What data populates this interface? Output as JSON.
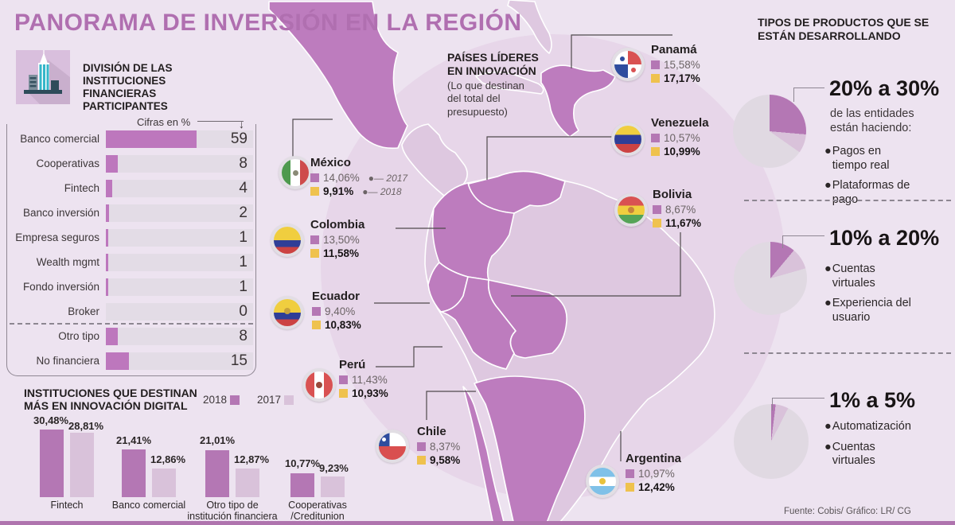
{
  "page": {
    "title": "PANORAMA DE INVERSIÓN EN LA REGIÓN",
    "footer_source": "Fuente: Cobis/ Gráfico: LR/ CG"
  },
  "colors": {
    "accent_purple": "#B477B4",
    "light_purple": "#D9C2DA",
    "yellow": "#EFC24E",
    "title_purple": "#B06FB0",
    "map_dark_country": "#BD7CBE",
    "map_light_country": "#DEC8E0",
    "bar_track": "#E3DCE6",
    "pie_rest": "#E0D9E2",
    "footer_bar": "#AF74AE"
  },
  "division_chart": {
    "heading": "DIVISIÓN DE LAS INSTITUCIONES FINANCIERAS PARTICIPANTES",
    "unit_label": "Cifras en %",
    "rows": [
      {
        "label": "Banco comercial",
        "value": 59
      },
      {
        "label": "Cooperativas",
        "value": 8
      },
      {
        "label": "Fintech",
        "value": 4
      },
      {
        "label": "Banco inversión",
        "value": 2
      },
      {
        "label": "Empresa seguros",
        "value": 1
      },
      {
        "label": "Wealth mgmt",
        "value": 1
      },
      {
        "label": "Fondo inversión",
        "value": 1
      },
      {
        "label": "Broker",
        "value": 0
      },
      {
        "label": "Otro tipo",
        "value": 8
      },
      {
        "label": "No financiera",
        "value": 15
      }
    ]
  },
  "innovation_map": {
    "heading": "PAÍSES LÍDERES EN INNOVACIÓN",
    "subheading": "(Lo que destinan del total del presupuesto)",
    "year_note_2017": "2017",
    "year_note_2018": "2018",
    "countries": [
      {
        "name": "México",
        "v2017": "14,06%",
        "v2018": "9,91%"
      },
      {
        "name": "Panamá",
        "v2017": "15,58%",
        "v2018": "17,17%"
      },
      {
        "name": "Venezuela",
        "v2017": "10,57%",
        "v2018": "10,99%"
      },
      {
        "name": "Colombia",
        "v2017": "13,50%",
        "v2018": "11,58%"
      },
      {
        "name": "Bolivia",
        "v2017": "8,67%",
        "v2018": "11,67%"
      },
      {
        "name": "Ecuador",
        "v2017": "9,40%",
        "v2018": "10,83%"
      },
      {
        "name": "Perú",
        "v2017": "11,43%",
        "v2018": "10,93%"
      },
      {
        "name": "Chile",
        "v2017": "8,37%",
        "v2018": "9,58%"
      },
      {
        "name": "Argentina",
        "v2017": "10,97%",
        "v2018": "12,42%"
      }
    ]
  },
  "products": {
    "heading": "TIPOS DE PRODUCTOS QUE SE ESTÁN DESARROLLANDO",
    "groups": [
      {
        "range": "20% a 30%",
        "note": "de las entidades están haciendo:",
        "items": [
          "Pagos en tiempo real",
          "Plataformas de pago"
        ],
        "pie": {
          "main_deg": 95,
          "secondary_deg": 30
        }
      },
      {
        "range": "10% a 20%",
        "note": "",
        "items": [
          "Cuentas virtuales",
          "Experiencia del usuario"
        ],
        "pie": {
          "main_deg": 40,
          "secondary_deg": 34
        }
      },
      {
        "range": "1% a 5%",
        "note": "",
        "items": [
          "Automatización",
          "Cuentas virtuales"
        ],
        "pie": {
          "main_deg": 7,
          "secondary_deg": 20
        }
      }
    ]
  },
  "digital_chart": {
    "heading": "INSTITUCIONES QUE DESTINAN MÁS EN INNOVACIÓN DIGITAL",
    "legend": [
      {
        "label": "2018"
      },
      {
        "label": "2017"
      }
    ],
    "groups": [
      {
        "label": "Fintech",
        "v2018": 30.48,
        "d2018": "30,48%",
        "v2017": 28.81,
        "d2017": "28,81%"
      },
      {
        "label": "Banco comercial",
        "v2018": 21.41,
        "d2018": "21,41%",
        "v2017": 12.86,
        "d2017": "12,86%"
      },
      {
        "label": "Otro tipo de institución financiera",
        "v2018": 21.01,
        "d2018": "21,01%",
        "v2017": 12.87,
        "d2017": "12,87%"
      },
      {
        "label": "Cooperativas /Creditunion",
        "v2018": 10.77,
        "d2018": "10,77%",
        "v2017": 9.23,
        "d2017": "9,23%"
      }
    ]
  },
  "chart_data": [
    {
      "type": "bar",
      "title": "DIVISIÓN DE LAS INSTITUCIONES FINANCIERAS PARTICIPANTES",
      "xlabel": "",
      "ylabel": "Cifras en %",
      "categories": [
        "Banco comercial",
        "Cooperativas",
        "Fintech",
        "Banco inversión",
        "Empresa seguros",
        "Wealth mgmt",
        "Fondo inversión",
        "Broker",
        "Otro tipo",
        "No financiera"
      ],
      "values": [
        59,
        8,
        4,
        2,
        1,
        1,
        1,
        0,
        8,
        15
      ],
      "xlim": [
        0,
        100
      ],
      "orientation": "horizontal"
    },
    {
      "type": "table",
      "title": "PAÍSES LÍDERES EN INNOVACIÓN (Lo que destinan del total del presupuesto)",
      "categories": [
        "México",
        "Panamá",
        "Venezuela",
        "Colombia",
        "Bolivia",
        "Ecuador",
        "Perú",
        "Chile",
        "Argentina"
      ],
      "series": [
        {
          "name": "2017",
          "values": [
            14.06,
            15.58,
            10.57,
            13.5,
            8.67,
            9.4,
            11.43,
            8.37,
            10.97
          ]
        },
        {
          "name": "2018",
          "values": [
            9.91,
            17.17,
            10.99,
            11.58,
            11.67,
            10.83,
            10.93,
            9.58,
            12.42
          ]
        }
      ]
    },
    {
      "type": "pie",
      "title": "TIPOS DE PRODUCTOS QUE SE ESTÁN DESARROLLANDO",
      "slices": [
        {
          "label": "20% a 30% — Pagos en tiempo real / Plataformas de pago",
          "approx_pct": 26
        },
        {
          "label": "10% a 20% — Cuentas virtuales / Experiencia del usuario",
          "approx_pct": 11
        },
        {
          "label": "1% a 5% — Automatización / Cuentas virtuales",
          "approx_pct": 2
        }
      ]
    },
    {
      "type": "bar",
      "title": "INSTITUCIONES QUE DESTINAN MÁS EN INNOVACIÓN DIGITAL",
      "categories": [
        "Fintech",
        "Banco comercial",
        "Otro tipo de institución financiera",
        "Cooperativas /Creditunion"
      ],
      "series": [
        {
          "name": "2018",
          "values": [
            30.48,
            21.41,
            21.01,
            10.77
          ]
        },
        {
          "name": "2017",
          "values": [
            28.81,
            12.86,
            12.87,
            9.23
          ]
        }
      ],
      "ylim": [
        0,
        35
      ],
      "legend_position": "top-right"
    }
  ]
}
